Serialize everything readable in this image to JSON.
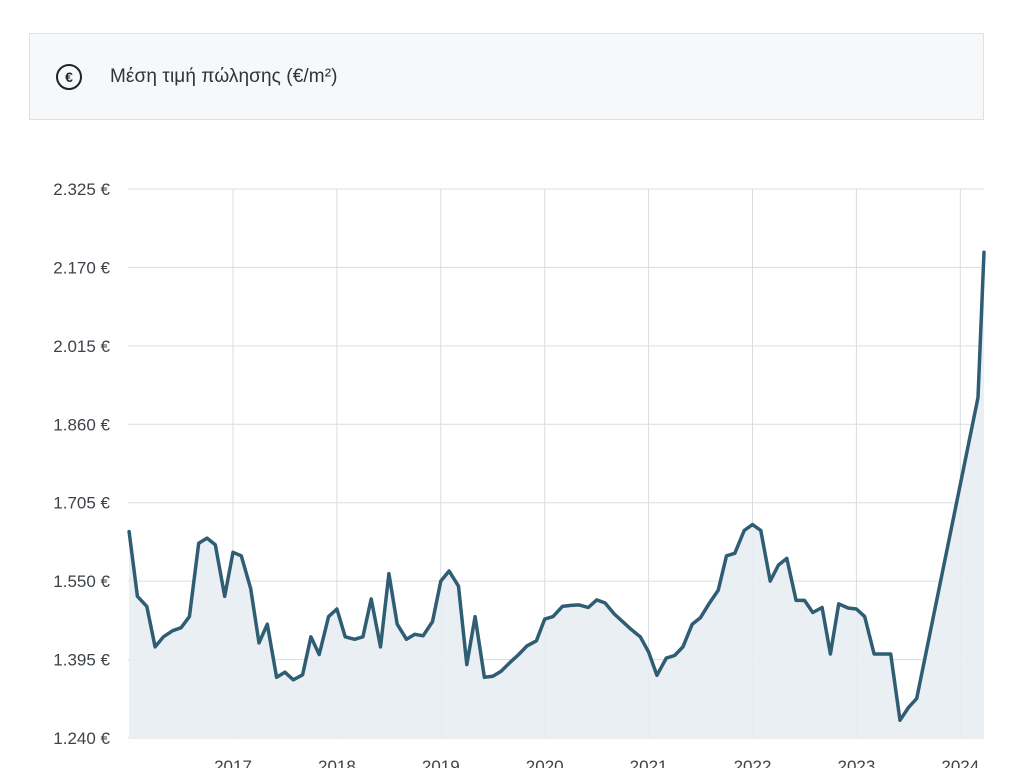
{
  "header": {
    "title": "Μέση τιμή πώλησης (€/m²)",
    "icon": "euro-circle-icon"
  },
  "colors": {
    "line": "#2f5d73",
    "area": "#e8edf2",
    "grid": "#d9dde1"
  },
  "chart_data": {
    "type": "area",
    "title": "",
    "xlabel": "",
    "ylabel": "",
    "grid": true,
    "xlim": [
      2016.0,
      2024.25
    ],
    "ylim": [
      1240,
      2325
    ],
    "yticks": [
      1240,
      1395,
      1550,
      1705,
      1860,
      2015,
      2170,
      2325
    ],
    "ytick_labels": [
      "1.240 €",
      "1.395 €",
      "1.550 €",
      "1.705 €",
      "1.860 €",
      "2.015 €",
      "2.170 €",
      "2.325 €"
    ],
    "xticks": [
      2017,
      2018,
      2019,
      2020,
      2021,
      2022,
      2023,
      2024
    ],
    "xtick_labels": [
      "2017",
      "2018",
      "2019",
      "2020",
      "2021",
      "2022",
      "2023",
      "2024"
    ],
    "series": [
      {
        "x": [
          2016.0,
          2016.08,
          2016.17,
          2016.25,
          2016.33,
          2016.42,
          2016.5,
          2016.58,
          2016.67,
          2016.75,
          2016.83,
          2016.92,
          2017.0,
          2017.08,
          2017.17,
          2017.25,
          2017.33,
          2017.42,
          2017.5,
          2017.58,
          2017.67,
          2017.75,
          2017.83,
          2017.92,
          2018.0,
          2018.08,
          2018.17,
          2018.25,
          2018.33,
          2018.42,
          2018.5,
          2018.58,
          2018.67,
          2018.75,
          2018.83,
          2018.92,
          2019.0,
          2019.08,
          2019.17,
          2019.25,
          2019.33,
          2019.42,
          2019.5,
          2019.58,
          2019.67,
          2019.75,
          2019.83,
          2019.92,
          2020.0,
          2020.08,
          2020.17,
          2020.25,
          2020.33,
          2020.42,
          2020.5,
          2020.58,
          2020.67,
          2020.75,
          2020.83,
          2020.92,
          2021.0,
          2021.08,
          2021.17,
          2021.25,
          2021.33,
          2021.42,
          2021.5,
          2021.58,
          2021.67,
          2021.75,
          2021.83,
          2021.92,
          2022.0,
          2022.08,
          2022.17,
          2022.25,
          2022.33,
          2022.42,
          2022.5,
          2022.58,
          2022.67,
          2022.75,
          2022.83,
          2022.92,
          2023.0,
          2023.08,
          2023.17,
          2023.25,
          2023.33,
          2023.42,
          2023.5,
          2023.58,
          2024.17,
          2024.25
        ],
        "values": [
          1648,
          1520,
          1500,
          1420,
          1440,
          1452,
          1458,
          1480,
          1625,
          1635,
          1622,
          1520,
          1607,
          1600,
          1535,
          1428,
          1465,
          1360,
          1370,
          1355,
          1365,
          1440,
          1405,
          1480,
          1495,
          1440,
          1435,
          1440,
          1515,
          1420,
          1565,
          1465,
          1435,
          1445,
          1442,
          1470,
          1550,
          1570,
          1540,
          1385,
          1480,
          1360,
          1362,
          1372,
          1390,
          1405,
          1422,
          1432,
          1475,
          1480,
          1500,
          1502,
          1503,
          1498,
          1513,
          1507,
          1485,
          1470,
          1455,
          1440,
          1410,
          1364,
          1398,
          1403,
          1420,
          1465,
          1478,
          1505,
          1532,
          1600,
          1605,
          1650,
          1662,
          1650,
          1550,
          1582,
          1595,
          1512,
          1512,
          1488,
          1498,
          1406,
          1505,
          1497,
          1495,
          1480,
          1406,
          1406,
          1406,
          1275,
          1300,
          1318,
          1913,
          2200
        ]
      }
    ]
  }
}
